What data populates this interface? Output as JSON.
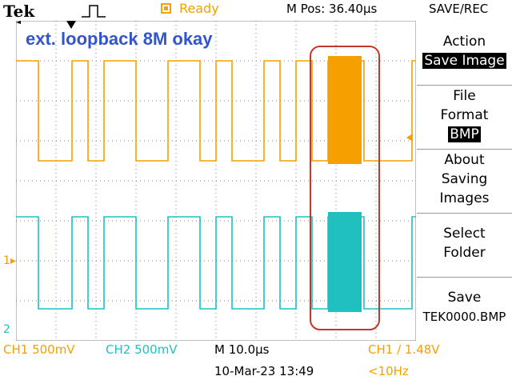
{
  "header": {
    "brand": "Tek",
    "status": "Ready",
    "m_pos": "M Pos: 36.40µs",
    "menu_title": "SAVE/REC",
    "trigger_icon": "trigger-pulse-icon",
    "status_icon": "run-state-icon"
  },
  "annotation": "ext. loopback 8M okay",
  "side_menu": {
    "action": {
      "label": "Action",
      "value": "Save Image"
    },
    "file_format": {
      "label": "File Format",
      "value": "BMP"
    },
    "about": "About Saving Images",
    "select_folder": "Select Folder",
    "save": {
      "label": "Save",
      "filename": "TEK0000.BMP"
    }
  },
  "markers": {
    "ch1": "1",
    "ch2": "2"
  },
  "footer": {
    "ch1_scale": "CH1  500mV",
    "ch2_scale": "CH2  500mV",
    "timebase": "M 10.0µs",
    "trigger": "CH1 ∕ 1.48V",
    "date": "10-Mar-23 13:49",
    "freq": "<10Hz"
  },
  "colors": {
    "ch1": "#f5a000",
    "ch2": "#20c0c0",
    "annotation": "#3355cc",
    "highlight_box": "#c0392b",
    "grid": "#808080"
  }
}
